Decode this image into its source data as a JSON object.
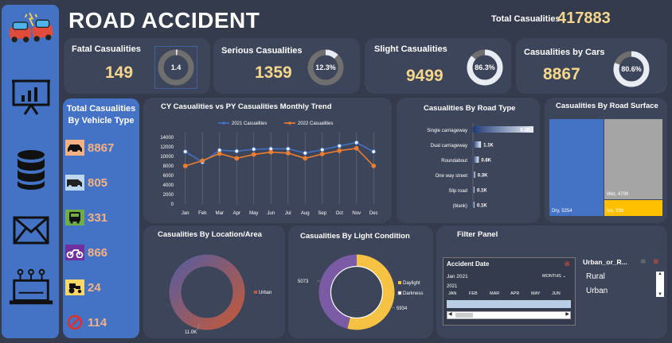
{
  "header": {
    "title": "ROAD ACCIDENT",
    "total_label": "Total Casualities",
    "total_value": "417883"
  },
  "kpis": [
    {
      "label": "Fatal Casualities",
      "value": "149",
      "donut_label": "1.4",
      "percent": 1.4
    },
    {
      "label": "Serious Casualities",
      "value": "1359",
      "donut_label": "12.3%",
      "percent": 12.3
    },
    {
      "label": "Slight Casualities",
      "value": "9499",
      "donut_label": "86.3%",
      "percent": 86.3
    },
    {
      "label": "Casualities by Cars",
      "value": "8867",
      "donut_label": "80.6%",
      "percent": 80.6
    }
  ],
  "vehicle_types": {
    "title_line1": "Total Casualities",
    "title_line2": "By Vehicle Type",
    "items": [
      {
        "icon": "car-icon",
        "value": "8867",
        "bg": "#f4b183"
      },
      {
        "icon": "van-icon",
        "value": "805",
        "bg": "#bdd7ee"
      },
      {
        "icon": "bus-icon",
        "value": "331",
        "bg": "#70ad47"
      },
      {
        "icon": "motorcycle-icon",
        "value": "866",
        "bg": "#7030a0"
      },
      {
        "icon": "tractor-icon",
        "value": "24",
        "bg": "#ffd966"
      },
      {
        "icon": "no-entry-icon",
        "value": "114",
        "bg": "#4472c4"
      }
    ]
  },
  "chart_data": [
    {
      "type": "line",
      "title": "CY Casualities vs PY Casualities  Monthly Trend",
      "categories": [
        "Jan",
        "Feb",
        "Mar",
        "Apr",
        "May",
        "Jun",
        "Jul",
        "Aug",
        "Sep",
        "Oct",
        "Nov",
        "Dec"
      ],
      "ylim": [
        0,
        14000
      ],
      "yticks": [
        "14000",
        "12000",
        "10000",
        "8000",
        "6000",
        "4000",
        "2000",
        "0"
      ],
      "series": [
        {
          "name": "2021 Casualities",
          "color": "#4472c4",
          "values": [
            11000,
            8800,
            11300,
            11100,
            11500,
            11600,
            11600,
            10700,
            11400,
            12200,
            12900,
            11000
          ]
        },
        {
          "name": "2022 Casualities",
          "color": "#ed7d31",
          "values": [
            8000,
            9100,
            10600,
            9600,
            10400,
            10900,
            10700,
            9600,
            10500,
            11200,
            11700,
            8000
          ]
        }
      ]
    },
    {
      "type": "bar",
      "title": "Casualities By Road Type",
      "categories": [
        "Single carriageway",
        "Dual carriageway",
        "Roundabout",
        "One way street",
        "Slip road",
        "(blank)"
      ],
      "values": [
        8300,
        1100,
        800,
        300,
        100,
        100
      ],
      "labels": [
        "8.3K",
        "1.1K",
        "0.8K",
        "0.3K",
        "0.1K",
        "0.1K"
      ]
    },
    {
      "type": "heatmap",
      "title": "Casualities By Road Surface",
      "cells": [
        {
          "label": "Dry, 5254",
          "value": 5254,
          "color": "#4472c4"
        },
        {
          "label": "Wet, 4799",
          "value": 4799,
          "color": "#a5a5a5"
        },
        {
          "label": "Ice, 936",
          "value": 936,
          "color": "#ffc000"
        }
      ]
    },
    {
      "type": "pie",
      "title": "Casualities By Location/Area",
      "legend": [
        "Urban"
      ],
      "slices": [
        {
          "name": "Urban",
          "value": 11000,
          "label": "11.0K"
        }
      ]
    },
    {
      "type": "pie",
      "title": "Casualities By Light Condition",
      "legend": [
        "Daylight",
        "Darkness"
      ],
      "slices": [
        {
          "name": "Daylight",
          "value": 5934,
          "label": "5934",
          "color": "#f6c244"
        },
        {
          "name": "Darkness",
          "value": 5073,
          "label": "5073",
          "color": "#7b5aa6"
        }
      ]
    }
  ],
  "filter_panel": {
    "title": "Filter Panel",
    "date_slicer": {
      "title": "Accident Date",
      "range": "Jan 2021",
      "period": "MONTHS",
      "year": "2021",
      "months": [
        "JAN",
        "FEB",
        "MAR",
        "APR",
        "MAY",
        "JUN"
      ]
    },
    "area_slicer": {
      "title": "Urban_or_R...",
      "options": [
        "Rural",
        "Urban"
      ]
    }
  }
}
